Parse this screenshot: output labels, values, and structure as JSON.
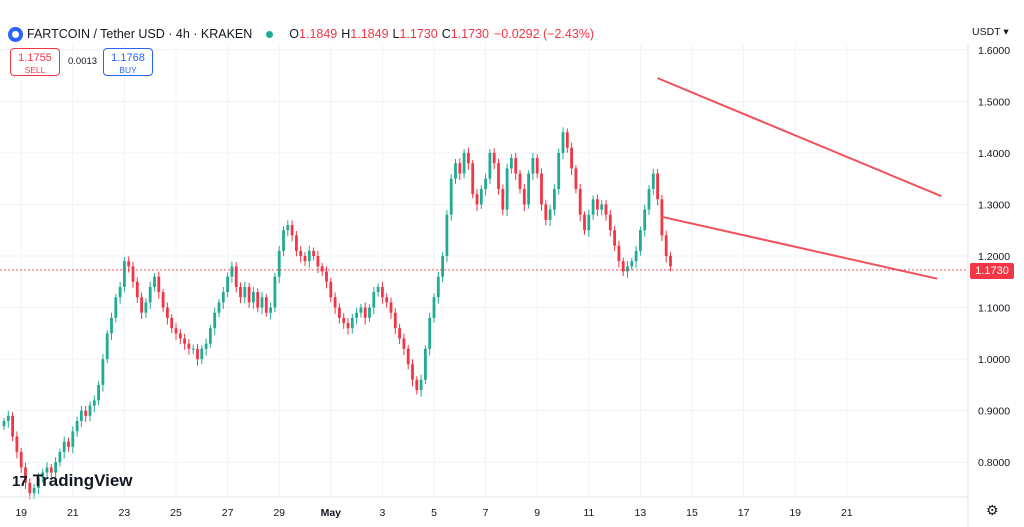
{
  "header": {
    "symbol": "FARTCOIN / Tether USD · 4h · KRAKEN",
    "o_label": "O",
    "o_value": "1.1849",
    "h_label": "H",
    "h_value": "1.1849",
    "l_label": "L",
    "l_value": "1.1730",
    "c_label": "C",
    "c_value": "1.1730",
    "change": "−0.0292 (−2.43%)"
  },
  "trade": {
    "sell_price": "1.1755",
    "sell_label": "SELL",
    "spread": "0.0013",
    "buy_price": "1.1768",
    "buy_label": "BUY"
  },
  "currency": "USDT",
  "currency_icon": "chevron-down-icon",
  "last_price_label": "1.1730",
  "logo_text": "TradingView",
  "logo_mark": "17",
  "settings_icon": "gear-icon",
  "colors": {
    "up": "#22ab94",
    "down": "#f23645",
    "trendline": "#f0515a",
    "logo": "#131722"
  },
  "chart_data": {
    "type": "candlestick",
    "title": "FARTCOIN / Tether USD · 4h · KRAKEN",
    "xlabel": "",
    "ylabel": "",
    "y_ticks": [
      "0.8000",
      "0.9000",
      "1.0000",
      "1.1000",
      "1.2000",
      "1.3000",
      "1.4000",
      "1.5000",
      "1.6000"
    ],
    "ylim": [
      0.75,
      1.65
    ],
    "x_ticks": [
      "19",
      "21",
      "23",
      "25",
      "27",
      "29",
      "May",
      "3",
      "5",
      "7",
      "9",
      "11",
      "13",
      "15",
      "17",
      "19",
      "21"
    ],
    "x_tick_index": [
      4,
      16,
      28,
      40,
      52,
      64,
      76,
      88,
      100,
      112,
      124,
      136,
      148,
      160,
      172,
      184,
      196
    ],
    "grid": true,
    "last_price": 1.173,
    "close": [
      0.88,
      0.89,
      0.85,
      0.82,
      0.79,
      0.76,
      0.74,
      0.75,
      0.77,
      0.78,
      0.79,
      0.78,
      0.8,
      0.82,
      0.84,
      0.83,
      0.86,
      0.88,
      0.9,
      0.89,
      0.91,
      0.92,
      0.95,
      1.0,
      1.05,
      1.08,
      1.12,
      1.14,
      1.19,
      1.18,
      1.15,
      1.12,
      1.09,
      1.11,
      1.14,
      1.16,
      1.13,
      1.1,
      1.08,
      1.06,
      1.05,
      1.04,
      1.03,
      1.02,
      1.02,
      1.0,
      1.02,
      1.03,
      1.06,
      1.09,
      1.11,
      1.13,
      1.16,
      1.18,
      1.14,
      1.12,
      1.14,
      1.11,
      1.13,
      1.1,
      1.12,
      1.09,
      1.1,
      1.16,
      1.21,
      1.25,
      1.26,
      1.24,
      1.21,
      1.2,
      1.19,
      1.21,
      1.2,
      1.18,
      1.17,
      1.15,
      1.12,
      1.1,
      1.08,
      1.07,
      1.06,
      1.08,
      1.09,
      1.1,
      1.08,
      1.1,
      1.13,
      1.14,
      1.12,
      1.11,
      1.09,
      1.06,
      1.04,
      1.02,
      0.99,
      0.96,
      0.94,
      0.96,
      1.02,
      1.08,
      1.12,
      1.16,
      1.2,
      1.28,
      1.35,
      1.38,
      1.36,
      1.4,
      1.38,
      1.32,
      1.3,
      1.33,
      1.35,
      1.4,
      1.38,
      1.33,
      1.29,
      1.37,
      1.39,
      1.36,
      1.33,
      1.3,
      1.36,
      1.39,
      1.36,
      1.3,
      1.27,
      1.29,
      1.33,
      1.4,
      1.44,
      1.41,
      1.37,
      1.33,
      1.28,
      1.25,
      1.28,
      1.31,
      1.29,
      1.3,
      1.28,
      1.25,
      1.22,
      1.19,
      1.17,
      1.18,
      1.19,
      1.21,
      1.25,
      1.29,
      1.33,
      1.36,
      1.31,
      1.24,
      1.2,
      1.18
    ],
    "trendlines": [
      {
        "name": "upper",
        "start": {
          "index": 152,
          "value": 1.545
        },
        "end": {
          "index": 218,
          "value": 1.316
        }
      },
      {
        "name": "lower",
        "start": {
          "index": 153,
          "value": 1.276
        },
        "end": {
          "index": 217,
          "value": 1.156
        }
      }
    ]
  }
}
